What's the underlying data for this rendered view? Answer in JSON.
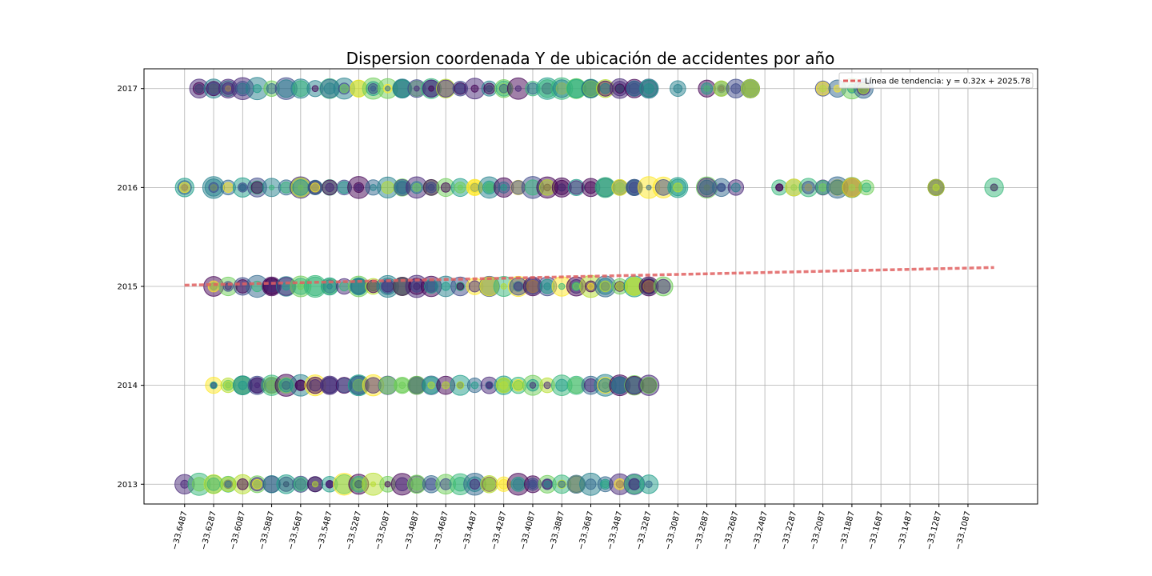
{
  "chart_data": {
    "type": "scatter",
    "title": "Dispersion coordenada Y de ubicación de accidentes por año",
    "xlabel": "",
    "ylabel": "",
    "x_ticks": [
      "−33.6487",
      "−33.6287",
      "−33.6087",
      "−33.5887",
      "−33.5687",
      "−33.5487",
      "−33.5287",
      "−33.5087",
      "−33.4887",
      "−33.4687",
      "−33.4487",
      "−33.4287",
      "−33.4087",
      "−33.3887",
      "−33.3687",
      "−33.3487",
      "−33.3287",
      "−33.3087",
      "−33.2887",
      "−33.2687",
      "−33.2487",
      "−33.2287",
      "−33.2087",
      "−33.1887",
      "−33.1687",
      "−33.1487",
      "−33.1287",
      "−33.1087"
    ],
    "x_tick_values": [
      -33.6487,
      -33.6287,
      -33.6087,
      -33.5887,
      -33.5687,
      -33.5487,
      -33.5287,
      -33.5087,
      -33.4887,
      -33.4687,
      -33.4487,
      -33.4287,
      -33.4087,
      -33.3887,
      -33.3687,
      -33.3487,
      -33.3287,
      -33.3087,
      -33.2887,
      -33.2687,
      -33.2487,
      -33.2287,
      -33.2087,
      -33.1887,
      -33.1687,
      -33.1487,
      -33.1287,
      -33.1087
    ],
    "y_ticks": [
      "2013",
      "2014",
      "2015",
      "2016",
      "2017"
    ],
    "y_tick_values": [
      2013,
      2014,
      2015,
      2016,
      2017
    ],
    "xlim": [
      -33.6767,
      -33.0607
    ],
    "ylim": [
      2012.8,
      2017.2
    ],
    "grid": true,
    "legend_position": "top-right",
    "colormap": [
      "#440154",
      "#482878",
      "#3e4989",
      "#31688e",
      "#26828e",
      "#1f9e89",
      "#35b779",
      "#6ece58",
      "#b5de2b",
      "#fde725"
    ],
    "series": [
      {
        "year": 2017,
        "x_values": [
          -33.6387,
          -33.6287,
          -33.6187,
          -33.6087,
          -33.5987,
          -33.5887,
          -33.5787,
          -33.5687,
          -33.5587,
          -33.5487,
          -33.5387,
          -33.5287,
          -33.5187,
          -33.5087,
          -33.4987,
          -33.4887,
          -33.4787,
          -33.4687,
          -33.4587,
          -33.4487,
          -33.4387,
          -33.4287,
          -33.4187,
          -33.4087,
          -33.3987,
          -33.3887,
          -33.3787,
          -33.3687,
          -33.3587,
          -33.3487,
          -33.3387,
          -33.3287,
          -33.3087,
          -33.2887,
          -33.2787,
          -33.2687,
          -33.2587,
          -33.2087,
          -33.1987,
          -33.1887,
          -33.1807
        ]
      },
      {
        "year": 2016,
        "x_values": [
          -33.6487,
          -33.6287,
          -33.6187,
          -33.6087,
          -33.5987,
          -33.5887,
          -33.5787,
          -33.5687,
          -33.5587,
          -33.5487,
          -33.5387,
          -33.5287,
          -33.5187,
          -33.5087,
          -33.4987,
          -33.4887,
          -33.4787,
          -33.4687,
          -33.4587,
          -33.4487,
          -33.4387,
          -33.4287,
          -33.4187,
          -33.4087,
          -33.3987,
          -33.3887,
          -33.3787,
          -33.3687,
          -33.3587,
          -33.3487,
          -33.3387,
          -33.3287,
          -33.3187,
          -33.3087,
          -33.2887,
          -33.2787,
          -33.2687,
          -33.2387,
          -33.2287,
          -33.2187,
          -33.2087,
          -33.1987,
          -33.1887,
          -33.1787,
          -33.1307,
          -33.0907
        ]
      },
      {
        "year": 2015,
        "x_values": [
          -33.6287,
          -33.6187,
          -33.6087,
          -33.5987,
          -33.5887,
          -33.5787,
          -33.5687,
          -33.5587,
          -33.5487,
          -33.5387,
          -33.5287,
          -33.5187,
          -33.5087,
          -33.4987,
          -33.4887,
          -33.4787,
          -33.4687,
          -33.4587,
          -33.4487,
          -33.4387,
          -33.4287,
          -33.4187,
          -33.4087,
          -33.3987,
          -33.3887,
          -33.3787,
          -33.3687,
          -33.3587,
          -33.3487,
          -33.3387,
          -33.3287,
          -33.3187
        ]
      },
      {
        "year": 2014,
        "x_values": [
          -33.6287,
          -33.6187,
          -33.6087,
          -33.5987,
          -33.5887,
          -33.5787,
          -33.5687,
          -33.5587,
          -33.5487,
          -33.5387,
          -33.5287,
          -33.5187,
          -33.5087,
          -33.4987,
          -33.4887,
          -33.4787,
          -33.4687,
          -33.4587,
          -33.4487,
          -33.4387,
          -33.4287,
          -33.4187,
          -33.4087,
          -33.3987,
          -33.3887,
          -33.3787,
          -33.3687,
          -33.3587,
          -33.3487,
          -33.3387,
          -33.3287
        ]
      },
      {
        "year": 2013,
        "x_values": [
          -33.6487,
          -33.6387,
          -33.6287,
          -33.6187,
          -33.6087,
          -33.5987,
          -33.5887,
          -33.5787,
          -33.5687,
          -33.5587,
          -33.5487,
          -33.5387,
          -33.5287,
          -33.5187,
          -33.5087,
          -33.4987,
          -33.4887,
          -33.4787,
          -33.4687,
          -33.4587,
          -33.4487,
          -33.4387,
          -33.4287,
          -33.4187,
          -33.4087,
          -33.3987,
          -33.3887,
          -33.3787,
          -33.3687,
          -33.3587,
          -33.3487,
          -33.3387,
          -33.3287
        ]
      }
    ],
    "trend_line": {
      "label": "Línea de tendencia: y = 0.32x + 2025.78",
      "color": "#e06060",
      "x_start": -33.6487,
      "x_end": -33.0907,
      "slope": 0.32,
      "intercept": 2025.78
    }
  }
}
